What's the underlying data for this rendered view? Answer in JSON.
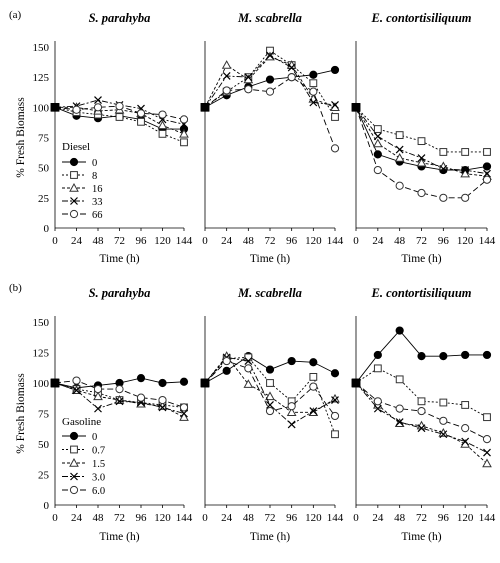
{
  "chart_data": [
    {
      "type": "line",
      "panel_label": "(a)",
      "ylabel": "% Fresh Biomass",
      "xlabel": "Time (h)",
      "x": [
        0,
        24,
        48,
        72,
        96,
        120,
        144
      ],
      "ylim": [
        0,
        150
      ],
      "yticks": [
        0,
        25,
        50,
        75,
        100,
        125,
        150
      ],
      "legend": {
        "title": "Diesel",
        "entries": [
          "0",
          "8",
          "16",
          "33",
          "66"
        ],
        "placement": "left panel, lower-left"
      },
      "subplots": [
        {
          "title": "S. parahyba",
          "series": [
            {
              "name": "0",
              "values": [
                100,
                93,
                91,
                93,
                90,
                82,
                82
              ]
            },
            {
              "name": "8",
              "values": [
                100,
                96,
                94,
                92,
                88,
                78,
                71
              ]
            },
            {
              "name": "16",
              "values": [
                100,
                100,
                97,
                98,
                95,
                85,
                78
              ]
            },
            {
              "name": "33",
              "values": [
                100,
                101,
                106,
                102,
                99,
                90,
                86
              ]
            },
            {
              "name": "66",
              "values": [
                100,
                98,
                100,
                101,
                95,
                94,
                90
              ]
            }
          ]
        },
        {
          "title": "M. scabrella",
          "series": [
            {
              "name": "0",
              "values": [
                100,
                110,
                117,
                123,
                125,
                127,
                131
              ]
            },
            {
              "name": "8",
              "values": [
                100,
                113,
                125,
                147,
                135,
                120,
                92
              ]
            },
            {
              "name": "16",
              "values": [
                100,
                135,
                123,
                142,
                135,
                107,
                100
              ]
            },
            {
              "name": "33",
              "values": [
                100,
                126,
                125,
                143,
                133,
                104,
                102
              ]
            },
            {
              "name": "66",
              "values": [
                100,
                114,
                115,
                113,
                125,
                113,
                66
              ]
            }
          ]
        },
        {
          "title": "E. contortisiliquum",
          "series": [
            {
              "name": "0",
              "values": [
                100,
                61,
                55,
                51,
                48,
                48,
                51
              ]
            },
            {
              "name": "8",
              "values": [
                100,
                82,
                77,
                72,
                63,
                63,
                63
              ]
            },
            {
              "name": "16",
              "values": [
                100,
                70,
                58,
                54,
                51,
                45,
                43
              ]
            },
            {
              "name": "33",
              "values": [
                100,
                76,
                65,
                58,
                49,
                48,
                45
              ]
            },
            {
              "name": "66",
              "values": [
                100,
                48,
                35,
                29,
                25,
                25,
                40
              ]
            }
          ]
        }
      ]
    },
    {
      "type": "line",
      "panel_label": "(b)",
      "ylabel": "% Fresh Biomass",
      "xlabel": "Time (h)",
      "x": [
        0,
        24,
        48,
        72,
        96,
        120,
        144
      ],
      "ylim": [
        0,
        150
      ],
      "yticks": [
        0,
        25,
        50,
        75,
        100,
        125,
        150
      ],
      "legend": {
        "title": "Gasoline",
        "entries": [
          "0",
          "0.7",
          "1.5",
          "3.0",
          "6.0"
        ],
        "placement": "left panel, lower-left"
      },
      "subplots": [
        {
          "title": "S. parahyba",
          "series": [
            {
              "name": "0",
              "values": [
                100,
                96,
                98,
                100,
                104,
                100,
                101
              ]
            },
            {
              "name": "0.7",
              "values": [
                100,
                95,
                92,
                86,
                84,
                82,
                80
              ]
            },
            {
              "name": "1.5",
              "values": [
                100,
                94,
                89,
                86,
                83,
                81,
                72
              ]
            },
            {
              "name": "3.0",
              "values": [
                100,
                94,
                79,
                85,
                84,
                80,
                75
              ]
            },
            {
              "name": "6.0",
              "values": [
                100,
                102,
                95,
                95,
                88,
                86,
                80
              ]
            }
          ]
        },
        {
          "title": "M. scabrella",
          "series": [
            {
              "name": "0",
              "values": [
                100,
                110,
                122,
                111,
                118,
                117,
                108
              ]
            },
            {
              "name": "0.7",
              "values": [
                100,
                120,
                121,
                100,
                85,
                105,
                58
              ]
            },
            {
              "name": "1.5",
              "values": [
                100,
                122,
                99,
                89,
                76,
                76,
                87
              ]
            },
            {
              "name": "3.0",
              "values": [
                100,
                121,
                118,
                82,
                66,
                77,
                86
              ]
            },
            {
              "name": "6.0",
              "values": [
                100,
                118,
                112,
                77,
                81,
                97,
                73
              ]
            }
          ]
        },
        {
          "title": "E. contortisiliquum",
          "series": [
            {
              "name": "0",
              "values": [
                100,
                123,
                143,
                122,
                122,
                123,
                123
              ]
            },
            {
              "name": "0.7",
              "values": [
                100,
                112,
                103,
                85,
                84,
                82,
                72
              ]
            },
            {
              "name": "1.5",
              "values": [
                100,
                82,
                67,
                65,
                59,
                50,
                34
              ]
            },
            {
              "name": "3.0",
              "values": [
                100,
                79,
                68,
                63,
                58,
                52,
                43
              ]
            },
            {
              "name": "6.0",
              "values": [
                100,
                85,
                79,
                77,
                69,
                63,
                54
              ]
            }
          ]
        }
      ]
    }
  ]
}
